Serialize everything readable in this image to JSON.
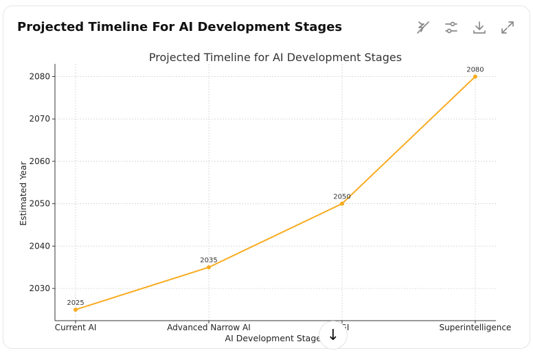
{
  "card": {
    "title": "Projected Timeline For AI Development Stages"
  },
  "toolbar": {
    "icons": [
      "hide-interactivity-icon",
      "chart-settings-icon",
      "download-icon",
      "expand-icon"
    ]
  },
  "chart_data": {
    "type": "line",
    "title": "Projected Timeline for AI Development Stages",
    "xlabel": "AI Development Stages",
    "ylabel": "Estimated Year",
    "categories": [
      "Current AI",
      "Advanced Narrow AI",
      "AGI",
      "Superintelligence"
    ],
    "values": [
      2025,
      2035,
      2050,
      2080
    ],
    "data_labels": [
      "2025",
      "2035",
      "2050",
      "2080"
    ],
    "yticks": [
      2030,
      2040,
      2050,
      2060,
      2070,
      2080
    ],
    "ylim": [
      2022.4,
      2083
    ],
    "grid": true,
    "color": "#f9ab1f"
  },
  "scroll_button": {
    "icon": "arrow-down-icon",
    "glyph": "↓"
  }
}
